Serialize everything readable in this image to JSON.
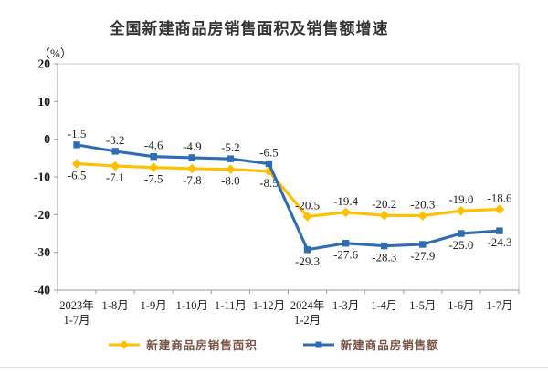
{
  "page": {
    "background": "#ffffff",
    "bottom_rule_color": "#e3e3e3"
  },
  "chart_data": {
    "type": "line",
    "title": "全国新建商品房销售面积及销售额增速",
    "unit_label": "（%）",
    "categories": [
      "2023年\n1-7月",
      "1-8月",
      "1-9月",
      "1-10月",
      "1-11月",
      "1-12月",
      "2024年\n1-2月",
      "1-3月",
      "1-4月",
      "1-5月",
      "1-6月",
      "1-7月"
    ],
    "series": [
      {
        "name": "新建商品房销售面积",
        "color": "#FFC000",
        "marker": "diamond",
        "values": [
          -6.5,
          -7.1,
          -7.5,
          -7.8,
          -8.0,
          -8.5,
          -20.5,
          -19.4,
          -20.2,
          -20.3,
          -19.0,
          -18.6
        ],
        "labels": [
          "-6.5",
          "-7.1",
          "-7.5",
          "-7.8",
          "-8.0",
          "-8.5",
          "-20.5",
          "-19.4",
          "-20.2",
          "-20.3",
          "-19.0",
          "-18.6"
        ],
        "label_sides": [
          "below",
          "below",
          "below",
          "below",
          "below",
          "below",
          "above",
          "above",
          "above",
          "above",
          "above",
          "above"
        ]
      },
      {
        "name": "新建商品房销售额",
        "color": "#2E6DB4",
        "marker": "square",
        "values": [
          -1.5,
          -3.2,
          -4.6,
          -4.9,
          -5.2,
          -6.5,
          -29.3,
          -27.6,
          -28.3,
          -27.9,
          -25.0,
          -24.3
        ],
        "labels": [
          "-1.5",
          "-3.2",
          "-4.6",
          "-4.9",
          "-5.2",
          "-6.5",
          "-29.3",
          "-27.6",
          "-28.3",
          "-27.9",
          "-25.0",
          "-24.3"
        ],
        "label_sides": [
          "above",
          "above",
          "above",
          "above",
          "above",
          "above",
          "below",
          "below",
          "below",
          "below",
          "below",
          "below"
        ]
      }
    ],
    "ylim": [
      -40,
      20
    ],
    "yticks": [
      20,
      10,
      0,
      -10,
      -20,
      -30,
      -40
    ],
    "grid": false,
    "legend_position": "bottom",
    "colors": {
      "title_text": "#333333",
      "plot_border": "#c9c9c9",
      "axis_line": "#9b9b9b",
      "tick_text": "#1a1a1a",
      "data_label_text": "#1f1f1f",
      "legend_text": "#7a5245"
    }
  }
}
